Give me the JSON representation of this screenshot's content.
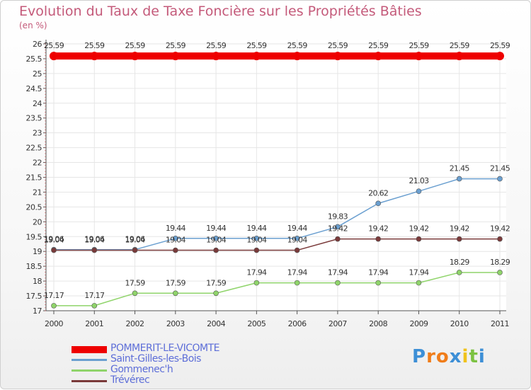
{
  "chart_data": {
    "type": "line",
    "title": "Evolution du Taux de Taxe Foncière sur les Propriétés Bâties",
    "subtitle": "(en %)",
    "xlabel": "",
    "ylabel": "(en %)",
    "ylim": [
      17,
      26
    ],
    "yticks": [
      "17",
      "17.5",
      "18",
      "18.5",
      "19",
      "19.5",
      "20",
      "20.5",
      "21",
      "21.5",
      "22",
      "22.5",
      "23",
      "23.5",
      "24",
      "24.5",
      "25",
      "25.5",
      "26"
    ],
    "categories": [
      "2000",
      "2001",
      "2002",
      "2003",
      "2004",
      "2005",
      "2006",
      "2007",
      "2008",
      "2009",
      "2010",
      "2011"
    ],
    "series": [
      {
        "name": "POMMERIT-LE-VICOMTE",
        "color": "#ee0000",
        "values": [
          25.59,
          25.59,
          25.59,
          25.59,
          25.59,
          25.59,
          25.59,
          25.59,
          25.59,
          25.59,
          25.59,
          25.59
        ],
        "labels": [
          "25.59",
          "25.59",
          "25.59",
          "25.59",
          "25.59",
          "25.59",
          "25.59",
          "25.59",
          "25.59",
          "25.59",
          "25.59",
          "25.59"
        ]
      },
      {
        "name": "Saint-Gilles-les-Bois",
        "color": "#6a9fd0",
        "values": [
          19.06,
          19.06,
          19.06,
          19.44,
          19.44,
          19.44,
          19.44,
          19.83,
          20.62,
          21.03,
          21.45,
          21.45
        ],
        "labels": [
          "19.06",
          "19.06",
          "19.06",
          "19.44",
          "19.44",
          "19.44",
          "19.44",
          "19.83",
          "20.62",
          "21.03",
          "21.45",
          "21.45"
        ]
      },
      {
        "name": "Gommenec'h",
        "color": "#8fd46a",
        "values": [
          17.17,
          17.17,
          17.59,
          17.59,
          17.59,
          17.94,
          17.94,
          17.94,
          17.94,
          17.94,
          18.29,
          18.29
        ],
        "labels": [
          "17.17",
          "17.17",
          "17.59",
          "17.59",
          "17.59",
          "17.94",
          "17.94",
          "17.94",
          "17.94",
          "17.94",
          "18.29",
          "18.29"
        ]
      },
      {
        "name": "Trévérec",
        "color": "#7a3a3a",
        "values": [
          19.04,
          19.04,
          19.04,
          19.04,
          19.04,
          19.04,
          19.04,
          19.42,
          19.42,
          19.42,
          19.42,
          19.42
        ],
        "labels": [
          "19.04",
          "19.04",
          "19.04",
          "19.04",
          "19.04",
          "19.04",
          "19.04",
          "19.42",
          "19.42",
          "19.42",
          "19.42",
          "19.42"
        ]
      }
    ]
  },
  "logo": {
    "letters": [
      "P",
      "r",
      "o",
      "x",
      "i",
      "t",
      "i"
    ],
    "colors": [
      "#3d8fd6",
      "#f07d1a",
      "#f07d1a",
      "#3d8fd6",
      "#f0c21a",
      "#7cc242",
      "#3d8fd6"
    ]
  }
}
